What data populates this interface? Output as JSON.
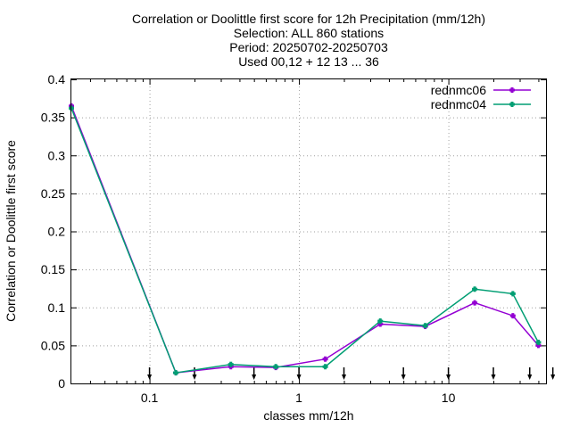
{
  "chart_data": {
    "type": "line",
    "title_lines": [
      "Correlation or Doolittle first score  for 12h Precipitation (mm/12h)",
      "Selection: ALL    860 stations",
      "Period: 20250702-20250703",
      "Used 00,12 + 12 13 ... 36"
    ],
    "xlabel": "classes mm/12h",
    "ylabel": "Correlation or Doolittle first score",
    "x_scale": "log",
    "xlim": [
      0.03,
      45
    ],
    "ylim": [
      0,
      0.4
    ],
    "x_ticks": [
      0.1,
      1,
      10
    ],
    "x_tick_labels": [
      "0.1",
      "1",
      "10"
    ],
    "y_ticks": [
      0,
      0.05,
      0.1,
      0.15,
      0.2,
      0.25,
      0.3,
      0.35,
      0.4
    ],
    "y_tick_labels": [
      "0",
      "0.05",
      "0.1",
      "0.15",
      "0.2",
      "0.25",
      "0.3",
      "0.35",
      "0.4"
    ],
    "grid": true,
    "legend_position": "top-right",
    "class_markers": [
      0.1,
      0.2,
      0.5,
      1,
      2,
      5,
      10,
      20,
      35,
      50
    ],
    "x": [
      0.03,
      0.15,
      0.35,
      0.7,
      1.5,
      3.5,
      7,
      15,
      27,
      40
    ],
    "series": [
      {
        "name": "rednmc06",
        "color": "#9400d3",
        "values": [
          0.365,
          0.014,
          0.022,
          0.021,
          0.032,
          0.078,
          0.075,
          0.106,
          0.089,
          0.05
        ]
      },
      {
        "name": "rednmc04",
        "color": "#009e73",
        "values": [
          0.362,
          0.014,
          0.025,
          0.022,
          0.022,
          0.082,
          0.076,
          0.124,
          0.118,
          0.054
        ]
      }
    ]
  }
}
